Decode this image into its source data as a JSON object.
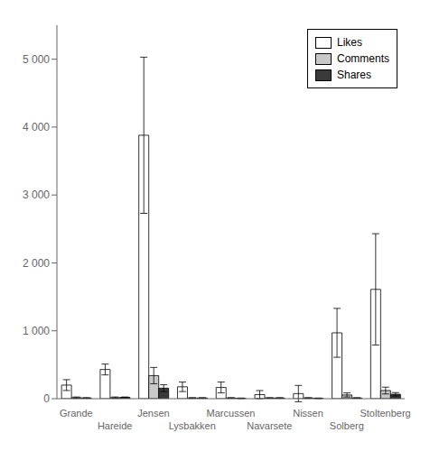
{
  "chart_data": {
    "type": "bar",
    "categories": [
      "Grande",
      "Hareide",
      "Jensen",
      "Lysbakken",
      "Marcussen",
      "Navarsete",
      "Nissen",
      "Solberg",
      "Stoltenberg"
    ],
    "series": [
      {
        "name": "Likes",
        "color": "#ffffff",
        "values": [
          200,
          430,
          3880,
          175,
          165,
          60,
          75,
          970,
          1610
        ],
        "errors": [
          80,
          80,
          1150,
          70,
          80,
          60,
          120,
          360,
          820
        ]
      },
      {
        "name": "Comments",
        "color": "#c8c8c8",
        "values": [
          15,
          15,
          340,
          10,
          10,
          10,
          10,
          55,
          120
        ],
        "errors": [
          10,
          10,
          120,
          5,
          5,
          5,
          5,
          30,
          50
        ]
      },
      {
        "name": "Shares",
        "color": "#3a3a3a",
        "values": [
          10,
          20,
          155,
          10,
          5,
          10,
          5,
          10,
          65
        ],
        "errors": [
          5,
          5,
          50,
          5,
          5,
          5,
          5,
          5,
          25
        ]
      }
    ],
    "ylim": [
      0,
      5500
    ],
    "yticks": [
      0,
      {
        "value": 1000,
        "label": "1 000"
      },
      {
        "value": 2000,
        "label": "2 000"
      },
      {
        "value": 3000,
        "label": "3 000"
      },
      {
        "value": 4000,
        "label": "4 000"
      },
      {
        "value": 5000,
        "label": "5 000"
      }
    ],
    "legend": "upper right",
    "grid": false
  }
}
